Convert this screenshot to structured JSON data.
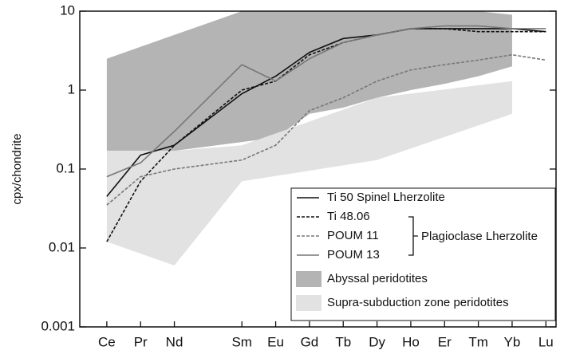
{
  "chart_data": {
    "type": "line",
    "y_label": "cpx/chondrite",
    "log_y": true,
    "xlim": [
      0.2,
      14.3
    ],
    "ylim": [
      0.001,
      10
    ],
    "xticks": [
      {
        "value": 1,
        "label": "Ce"
      },
      {
        "value": 2,
        "label": "Pr"
      },
      {
        "value": 3,
        "label": "Nd"
      },
      {
        "value": 5,
        "label": "Sm"
      },
      {
        "value": 6,
        "label": "Eu"
      },
      {
        "value": 7,
        "label": "Gd"
      },
      {
        "value": 8,
        "label": "Tb"
      },
      {
        "value": 9,
        "label": "Dy"
      },
      {
        "value": 10,
        "label": "Ho"
      },
      {
        "value": 11,
        "label": "Er"
      },
      {
        "value": 12,
        "label": "Tm"
      },
      {
        "value": 13,
        "label": "Yb"
      },
      {
        "value": 14,
        "label": "Lu"
      }
    ],
    "yticks": [
      0.001,
      0.01,
      0.1,
      1,
      10
    ],
    "x": [
      1,
      2,
      3,
      5,
      6,
      7,
      8,
      9,
      10,
      11,
      12,
      13,
      14
    ],
    "series": [
      {
        "name": "Ti 50 Spinel Lherzolite",
        "color": "#111111",
        "dash": false,
        "values": [
          0.045,
          0.15,
          0.2,
          0.9,
          1.5,
          3,
          4.5,
          5,
          6,
          6,
          6,
          6,
          5.5
        ]
      },
      {
        "name": "Ti 48.06",
        "color": "#111111",
        "dash": true,
        "values": [
          0.012,
          0.07,
          0.2,
          1.0,
          1.3,
          2.8,
          4,
          5,
          6,
          6,
          5.5,
          5.5,
          5.5
        ]
      },
      {
        "name": "POUM 11",
        "color": "#777777",
        "dash": true,
        "values": [
          0.035,
          0.08,
          0.1,
          0.13,
          0.2,
          0.55,
          0.8,
          1.3,
          1.8,
          2.1,
          2.4,
          2.8,
          2.4
        ]
      },
      {
        "name": "POUM 13",
        "color": "#777777",
        "dash": false,
        "values": [
          0.08,
          0.12,
          0.3,
          2.1,
          1.3,
          2.5,
          4,
          5,
          6,
          6.5,
          6.5,
          6,
          6
        ]
      }
    ],
    "bracket_label": "Plagioclase Lherzolite",
    "areas": [
      {
        "name": "Abyssal peridotites",
        "color": "#b4b4b4",
        "x": [
          1,
          3,
          5,
          6,
          7,
          8,
          9,
          10,
          11,
          12,
          13
        ],
        "upper": [
          2.5,
          5,
          10,
          10,
          10,
          10,
          10,
          10,
          10,
          10,
          9
        ],
        "lower": [
          0.17,
          0.17,
          0.22,
          0.25,
          0.5,
          0.6,
          0.8,
          1,
          1.2,
          1.5,
          2
        ]
      },
      {
        "name": "Supra-subduction zone peridotites",
        "color": "#e2e2e2",
        "x": [
          1,
          3,
          5,
          9,
          13
        ],
        "upper": [
          0.17,
          0.17,
          0.2,
          0.8,
          1.3
        ],
        "lower": [
          0.012,
          0.006,
          0.07,
          0.13,
          0.5
        ]
      }
    ]
  }
}
